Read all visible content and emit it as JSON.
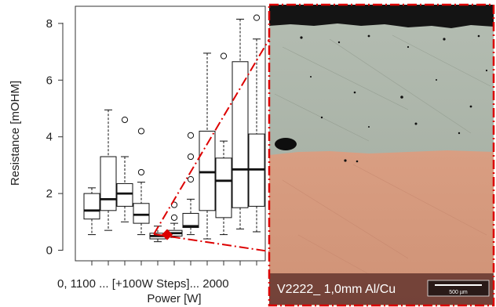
{
  "chart_data": {
    "type": "boxplot",
    "xlabel": "Power [W]",
    "ylabel": "Resistance [mOHM]",
    "ylim": [
      -0.3,
      8.4
    ],
    "y_ticks": [
      0,
      2,
      4,
      6,
      8
    ],
    "x_tick_text": "0, 1100 ... [+100W Steps]... 2000",
    "grid": false,
    "boxes": [
      {
        "whisker_low": 0.55,
        "q1": 1.1,
        "median": 1.4,
        "q3": 2.0,
        "whisker_high": 2.2,
        "outliers": []
      },
      {
        "whisker_low": 0.7,
        "q1": 1.4,
        "median": 1.8,
        "q3": 3.3,
        "whisker_high": 4.95,
        "outliers": []
      },
      {
        "whisker_low": 1.0,
        "q1": 1.55,
        "median": 2.0,
        "q3": 2.35,
        "whisker_high": 3.3,
        "outliers": [
          4.6
        ]
      },
      {
        "whisker_low": 0.55,
        "q1": 0.95,
        "median": 1.25,
        "q3": 1.65,
        "whisker_high": 2.4,
        "outliers": [
          2.75,
          4.2
        ]
      },
      {
        "whisker_low": 0.3,
        "q1": 0.4,
        "median": 0.5,
        "q3": 0.6,
        "whisker_high": 0.85,
        "outliers": []
      },
      {
        "whisker_low": 0.45,
        "q1": 0.5,
        "median": 0.6,
        "q3": 0.7,
        "whisker_high": 0.95,
        "outliers": [
          1.15,
          1.6
        ]
      },
      {
        "whisker_low": 0.55,
        "q1": 0.8,
        "median": 0.85,
        "q3": 1.3,
        "whisker_high": 1.8,
        "outliers": [
          2.5,
          3.3,
          4.05
        ]
      },
      {
        "whisker_low": 0.4,
        "q1": 1.4,
        "median": 2.75,
        "q3": 4.2,
        "whisker_high": 6.95,
        "outliers": []
      },
      {
        "whisker_low": 0.55,
        "q1": 1.15,
        "median": 2.45,
        "q3": 3.25,
        "whisker_high": 3.85,
        "outliers": [
          6.85
        ]
      },
      {
        "whisker_low": 0.75,
        "q1": 1.5,
        "median": 2.85,
        "q3": 6.65,
        "whisker_high": 8.15,
        "outliers": []
      },
      {
        "whisker_low": 0.65,
        "q1": 1.55,
        "median": 2.85,
        "q3": 4.1,
        "whisker_high": 7.45,
        "outliers": [
          8.2
        ]
      }
    ],
    "highlight": {
      "box_index": 4,
      "value": 0.55,
      "color": "#dd0000"
    }
  },
  "micrograph": {
    "caption": "V2222_ 1,0mm Al/Cu",
    "scale_label": "500 µm",
    "colors": {
      "top_dark": "#141414",
      "aluminium": "#a8b2a6",
      "copper": "#d69a7e",
      "caption_bg": "#6b3c34",
      "frame": "#dd0000"
    }
  }
}
